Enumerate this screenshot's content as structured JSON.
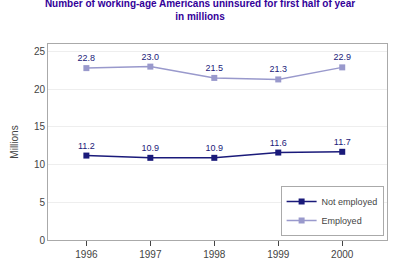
{
  "chart_data": {
    "type": "line",
    "title": "Number of working-age Americans uninsured for first half of year\nin millions",
    "ylabel": "Millions",
    "x": [
      1996,
      1997,
      1998,
      1999,
      2000
    ],
    "series": [
      {
        "name": "Not employed",
        "color": "#1a1a7a",
        "marker": "square",
        "values": [
          11.2,
          10.9,
          10.9,
          11.6,
          11.7
        ],
        "value_labels": [
          "11.2",
          "10.9",
          "10.9",
          "11.6",
          "11.7"
        ]
      },
      {
        "name": "Employed",
        "color": "#9999cc",
        "marker": "square",
        "values": [
          22.8,
          23.0,
          21.5,
          21.3,
          22.9
        ],
        "value_labels": [
          "22.8",
          "23.0",
          "21.5",
          "21.3",
          "22.9"
        ]
      }
    ],
    "xlim": [
      1995.4,
      2000.7
    ],
    "xticks": [
      1996,
      1997,
      1998,
      1999,
      2000
    ],
    "ylim": [
      0,
      26
    ],
    "yticks": [
      0,
      5,
      10,
      15,
      20,
      25
    ],
    "grid": true,
    "legend": "lower right",
    "data_labels": true
  }
}
